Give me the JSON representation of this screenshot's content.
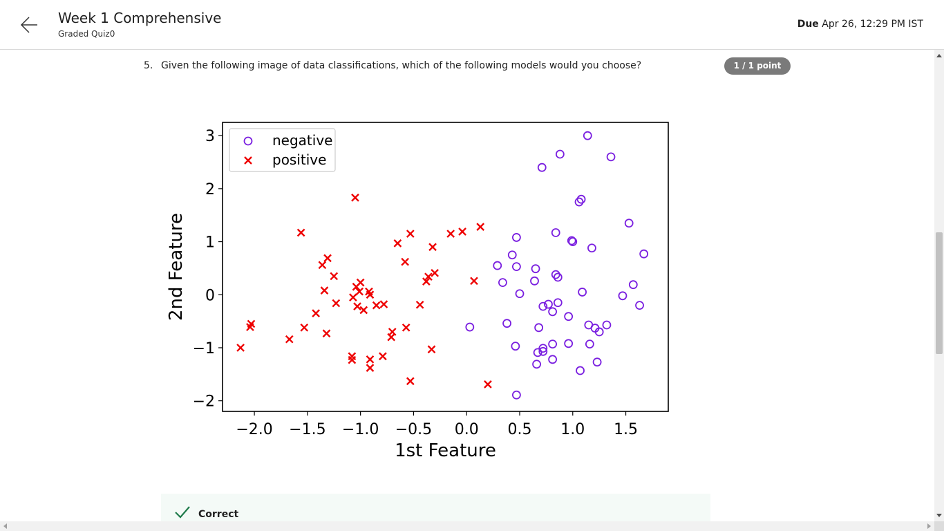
{
  "header": {
    "title": "Week 1 Comprehensive",
    "subtitle": "Graded Quiz0",
    "due_label": "Due",
    "due_value": "Apr 26, 12:29 PM IST"
  },
  "question": {
    "number": "5.",
    "text": "Given the following image of data classifications, which of the following models would you choose?",
    "points": "1 / 1 point"
  },
  "feedback": {
    "label": "Correct"
  },
  "colors": {
    "negative": "#7a1fe0",
    "positive": "#ee0000",
    "badge": "#7a7a7a",
    "check": "#1e7a4a"
  },
  "icons": [
    "arrow-left-icon",
    "checkmark-icon"
  ],
  "chart_data": {
    "type": "scatter",
    "xlabel": "1st Feature",
    "ylabel": "2nd Feature",
    "xlim": [
      -2.3,
      1.9
    ],
    "ylim": [
      -2.2,
      3.25
    ],
    "xticks": [
      -2.0,
      -1.5,
      -1.0,
      -0.5,
      0.0,
      0.5,
      1.0,
      1.5
    ],
    "xtick_labels": [
      "−2.0",
      "−1.5",
      "−1.0",
      "−0.5",
      "0.0",
      "0.5",
      "1.0",
      "1.5"
    ],
    "yticks": [
      -2,
      -1,
      0,
      1,
      2,
      3
    ],
    "ytick_labels": [
      "−2",
      "−1",
      "0",
      "1",
      "2",
      "3"
    ],
    "legend_position": "top-left",
    "series": [
      {
        "name": "negative",
        "marker": "circle",
        "points": [
          [
            1.14,
            3.0
          ],
          [
            0.88,
            2.65
          ],
          [
            1.36,
            2.6
          ],
          [
            0.71,
            2.4
          ],
          [
            1.08,
            1.8
          ],
          [
            1.06,
            1.75
          ],
          [
            1.53,
            1.35
          ],
          [
            0.84,
            1.17
          ],
          [
            0.47,
            1.08
          ],
          [
            0.99,
            1.02
          ],
          [
            1.0,
            1.0
          ],
          [
            1.18,
            0.88
          ],
          [
            1.67,
            0.77
          ],
          [
            0.43,
            0.75
          ],
          [
            0.29,
            0.55
          ],
          [
            0.47,
            0.53
          ],
          [
            0.65,
            0.49
          ],
          [
            0.84,
            0.38
          ],
          [
            0.86,
            0.33
          ],
          [
            0.64,
            0.26
          ],
          [
            0.34,
            0.23
          ],
          [
            1.57,
            0.19
          ],
          [
            0.5,
            0.02
          ],
          [
            1.09,
            0.05
          ],
          [
            1.47,
            -0.02
          ],
          [
            0.77,
            -0.18
          ],
          [
            0.72,
            -0.22
          ],
          [
            0.86,
            -0.15
          ],
          [
            1.63,
            -0.2
          ],
          [
            0.81,
            -0.32
          ],
          [
            0.96,
            -0.41
          ],
          [
            0.03,
            -0.61
          ],
          [
            0.38,
            -0.54
          ],
          [
            0.68,
            -0.62
          ],
          [
            1.15,
            -0.57
          ],
          [
            1.21,
            -0.63
          ],
          [
            1.32,
            -0.57
          ],
          [
            1.25,
            -0.7
          ],
          [
            0.96,
            -0.92
          ],
          [
            0.81,
            -0.93
          ],
          [
            1.16,
            -0.93
          ],
          [
            0.46,
            -0.97
          ],
          [
            0.72,
            -1.01
          ],
          [
            0.67,
            -1.09
          ],
          [
            0.72,
            -1.07
          ],
          [
            0.81,
            -1.22
          ],
          [
            1.23,
            -1.27
          ],
          [
            0.66,
            -1.31
          ],
          [
            1.07,
            -1.43
          ],
          [
            0.47,
            -1.89
          ]
        ]
      },
      {
        "name": "positive",
        "marker": "x",
        "points": [
          [
            -1.05,
            1.83
          ],
          [
            -1.56,
            1.17
          ],
          [
            0.13,
            1.28
          ],
          [
            -0.04,
            1.19
          ],
          [
            -0.15,
            1.15
          ],
          [
            -0.53,
            1.15
          ],
          [
            -0.65,
            0.97
          ],
          [
            -0.32,
            0.9
          ],
          [
            -1.31,
            0.69
          ],
          [
            -1.36,
            0.56
          ],
          [
            -0.58,
            0.62
          ],
          [
            -0.3,
            0.41
          ],
          [
            -0.36,
            0.34
          ],
          [
            -0.38,
            0.25
          ],
          [
            -1.25,
            0.35
          ],
          [
            0.07,
            0.26
          ],
          [
            -1.0,
            0.23
          ],
          [
            -1.04,
            0.15
          ],
          [
            -1.34,
            0.08
          ],
          [
            -1.01,
            0.06
          ],
          [
            -0.92,
            0.06
          ],
          [
            -0.91,
            0.0
          ],
          [
            -1.07,
            -0.05
          ],
          [
            -1.23,
            -0.16
          ],
          [
            -0.78,
            -0.18
          ],
          [
            -0.85,
            -0.2
          ],
          [
            -1.03,
            -0.22
          ],
          [
            -0.97,
            -0.29
          ],
          [
            -0.44,
            -0.19
          ],
          [
            -1.42,
            -0.35
          ],
          [
            -2.03,
            -0.55
          ],
          [
            -2.04,
            -0.61
          ],
          [
            -1.53,
            -0.62
          ],
          [
            -0.57,
            -0.62
          ],
          [
            -0.7,
            -0.7
          ],
          [
            -0.71,
            -0.8
          ],
          [
            -1.32,
            -0.73
          ],
          [
            -1.67,
            -0.84
          ],
          [
            -2.13,
            -1.0
          ],
          [
            -0.33,
            -1.03
          ],
          [
            -1.08,
            -1.16
          ],
          [
            -1.08,
            -1.23
          ],
          [
            -0.91,
            -1.22
          ],
          [
            -0.79,
            -1.16
          ],
          [
            -0.91,
            -1.38
          ],
          [
            -0.53,
            -1.63
          ],
          [
            0.2,
            -1.69
          ]
        ]
      }
    ]
  }
}
